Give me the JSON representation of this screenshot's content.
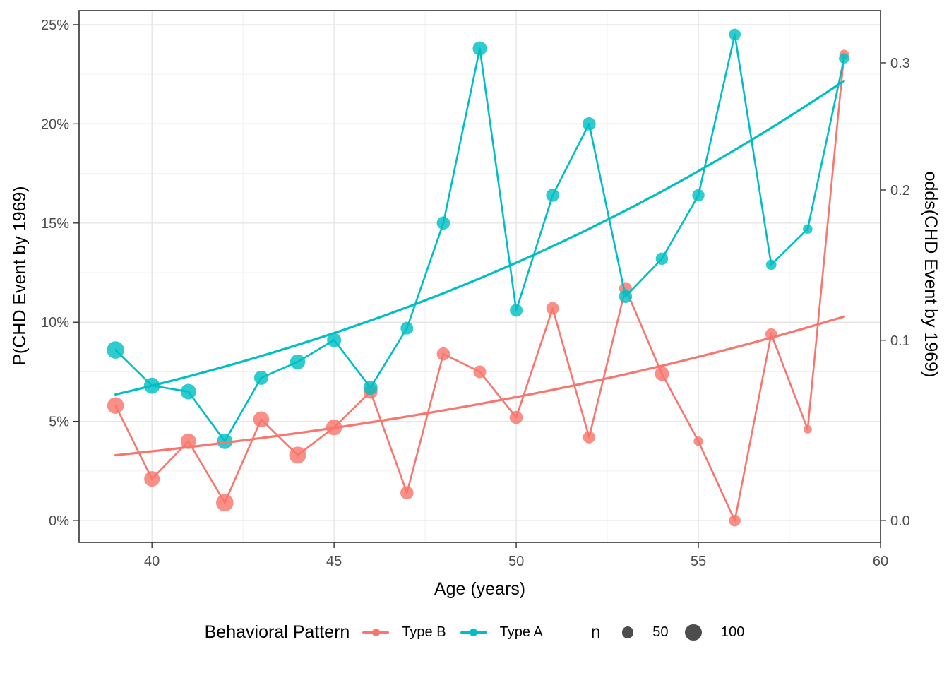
{
  "figure": {
    "x_title": "Age (years)",
    "y_left_title": "P(CHD Event by 1969)",
    "y_right_title": "odds(CHD Event by 1969)"
  },
  "axes": {
    "x": {
      "domain": [
        38,
        60
      ],
      "tick_values": [
        40,
        45,
        50,
        55,
        60
      ],
      "tick_labels": [
        "40",
        "45",
        "50",
        "55",
        "60"
      ],
      "minor": [
        42.5,
        47.5,
        52.5,
        57.5
      ]
    },
    "y_left": {
      "domain_pct": [
        -1.1,
        25.71
      ],
      "tick_values": [
        0,
        5,
        10,
        15,
        20,
        25
      ],
      "tick_labels": [
        "0%",
        "5%",
        "10%",
        "15%",
        "20%",
        "25%"
      ],
      "minor": [
        2.5,
        7.5,
        12.5,
        17.5,
        22.5
      ]
    },
    "y_right": {
      "tick_values": [
        0.0,
        0.1,
        0.2,
        0.3
      ],
      "tick_labels": [
        "0.0",
        "0.1",
        "0.2",
        "0.3"
      ],
      "note": "odds scale: position = p/(1-p) mapped onto probability axis"
    }
  },
  "legend": {
    "pattern_title": "Behavioral Pattern",
    "entries": [
      {
        "label": "Type B",
        "color": "#F8766D"
      },
      {
        "label": "Type A",
        "color": "#00BFC4"
      }
    ],
    "size_title": "n",
    "sizes": [
      {
        "label": "50",
        "n": 50
      },
      {
        "label": "100",
        "n": 100
      }
    ],
    "size_color": "#4D4D4D"
  },
  "style": {
    "red": "#F8766D",
    "teal": "#00BFC4",
    "grid_major": "#E6E6E6",
    "grid_minor": "#F1F1F1",
    "border": "#333333",
    "tick": "#333333",
    "tick_text": "#4D4D4D"
  },
  "chart_data": {
    "type": "scatter",
    "title": "",
    "xlabel": "Age (years)",
    "ylabel_left": "P(CHD Event by 1969)",
    "ylabel_right": "odds(CHD Event by 1969)",
    "xlim": [
      38,
      60
    ],
    "ylim_pct": [
      -1.1,
      25.71
    ],
    "grid": true,
    "legend_position": "bottom",
    "ages": [
      39,
      40,
      41,
      42,
      43,
      44,
      45,
      46,
      47,
      48,
      49,
      50,
      51,
      52,
      53,
      54,
      55,
      56,
      57,
      58,
      59
    ],
    "series": [
      {
        "name": "Type B",
        "color": "#F8766D",
        "pct": [
          5.8,
          2.1,
          4.0,
          0.9,
          5.1,
          3.3,
          4.7,
          6.5,
          1.4,
          8.4,
          7.5,
          5.2,
          10.7,
          4.2,
          11.7,
          7.4,
          4.0,
          0.0,
          9.4,
          4.6,
          23.5
        ],
        "n": [
          100,
          88,
          88,
          110,
          93,
          105,
          93,
          73,
          63,
          63,
          59,
          63,
          59,
          55,
          59,
          73,
          33,
          50,
          50,
          26,
          33
        ]
      },
      {
        "name": "Type A",
        "color": "#00BFC4",
        "pct": [
          8.6,
          6.8,
          6.5,
          4.0,
          7.2,
          8.0,
          9.1,
          6.7,
          9.7,
          15.0,
          23.8,
          10.6,
          16.4,
          20.0,
          11.3,
          13.2,
          16.4,
          24.5,
          12.9,
          14.7,
          23.3
        ],
        "n": [
          110,
          93,
          88,
          88,
          73,
          83,
          73,
          73,
          59,
          63,
          73,
          59,
          63,
          63,
          63,
          55,
          55,
          50,
          39,
          33,
          39
        ]
      }
    ],
    "trends": [
      {
        "name": "Type B",
        "color": "#F8766D",
        "model": "logistic",
        "logit_b0": -5.747,
        "logit_b1": 0.0607,
        "x_range": [
          39,
          59
        ],
        "pct_at_39": 3.3,
        "pct_at_59": 10.3
      },
      {
        "name": "Type A",
        "color": "#00BFC4",
        "model": "logistic",
        "logit_b0": -5.486,
        "logit_b1": 0.0717,
        "x_range": [
          39,
          59
        ],
        "pct_at_39": 6.4,
        "pct_at_59": 22.2
      }
    ]
  }
}
